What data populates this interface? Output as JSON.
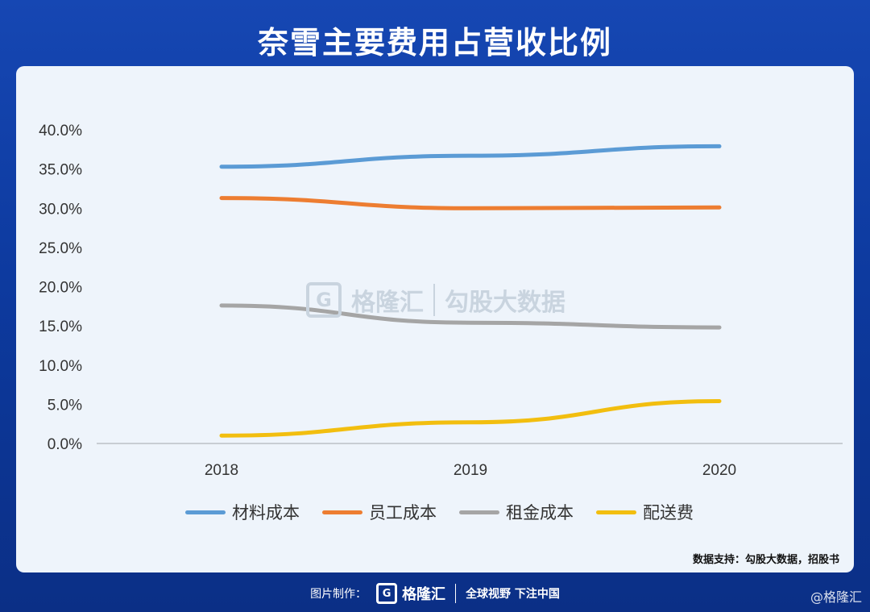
{
  "title": "奈雪主要费用占营收比例",
  "watermark": {
    "logo_text": "格隆汇",
    "brand": "勾股大数据"
  },
  "source": "数据支持：勾股大数据，招股书",
  "footer": {
    "label": "图片制作：",
    "logo_text": "格隆汇",
    "slogan": "全球视野 下注中国"
  },
  "corner_mark": "@格隆汇",
  "chart_data": {
    "type": "line",
    "categories": [
      "2018",
      "2019",
      "2020"
    ],
    "y_tick_labels": [
      "0.0%",
      "5.0%",
      "10.0%",
      "15.0%",
      "20.0%",
      "25.0%",
      "30.0%",
      "35.0%",
      "40.0%"
    ],
    "ylim": [
      0,
      40
    ],
    "grid": false,
    "legend_position": "bottom",
    "series": [
      {
        "name": "材料成本",
        "color": "#5b9bd5",
        "values": [
          35.3,
          36.7,
          37.9
        ]
      },
      {
        "name": "员工成本",
        "color": "#ed7d31",
        "values": [
          31.3,
          30.0,
          30.1
        ]
      },
      {
        "name": "租金成本",
        "color": "#a5a5a5",
        "values": [
          17.6,
          15.4,
          14.8
        ]
      },
      {
        "name": "配送费",
        "color": "#f2be0f",
        "values": [
          1.0,
          2.7,
          5.4
        ]
      }
    ]
  }
}
